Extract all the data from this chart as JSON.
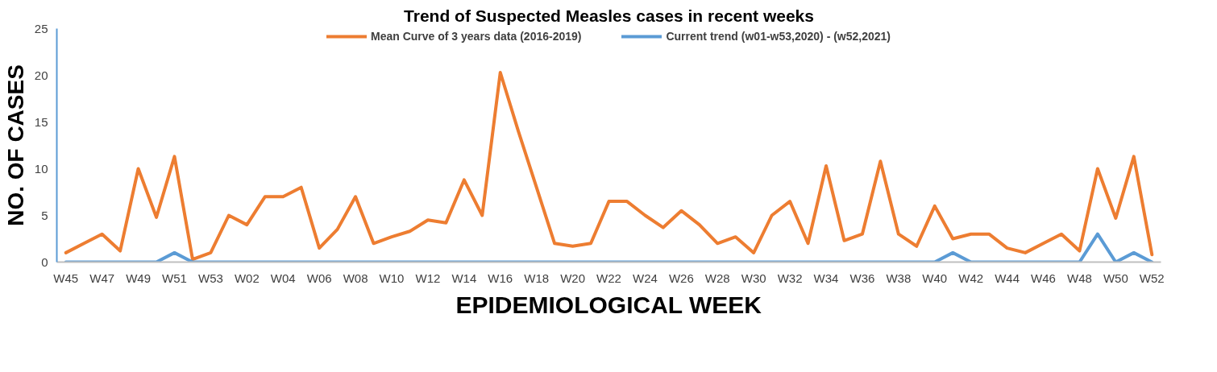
{
  "chart_data": {
    "type": "line",
    "title": "Trend of Suspected Measles cases in recent weeks",
    "xlabel": "EPIDEMIOLOGICAL WEEK",
    "ylabel": "NO. OF CASES",
    "categories": [
      "W45",
      null,
      "W47",
      null,
      "W49",
      null,
      "W51",
      null,
      "W53",
      null,
      "W02",
      null,
      "W04",
      null,
      "W06",
      null,
      "W08",
      null,
      "W10",
      null,
      "W12",
      null,
      "W14",
      null,
      "W16",
      null,
      "W18",
      null,
      "W20",
      null,
      "W22",
      null,
      "W24",
      null,
      "W26",
      null,
      "W28",
      null,
      "W30",
      null,
      "W32",
      null,
      "W34",
      null,
      "W36",
      null,
      "W38",
      null,
      "W40",
      null,
      "W42",
      null,
      "W44",
      null,
      "W46",
      null,
      "W48",
      null,
      "W50",
      null,
      "W52"
    ],
    "series": [
      {
        "name": "Mean Curve of 3 years data (2016-2019)",
        "color": "#ed7d31",
        "values": [
          1,
          2,
          3,
          1.2,
          10,
          4.8,
          11.3,
          0.3,
          1,
          5,
          4,
          7,
          7,
          8,
          1.5,
          3.5,
          7,
          2,
          2.7,
          3.3,
          4.5,
          4.2,
          8.8,
          5,
          20.3,
          14,
          8,
          2,
          1.7,
          2,
          6.5,
          6.5,
          5,
          3.7,
          5.5,
          4,
          2,
          2.7,
          1,
          5,
          6.5,
          2,
          10.3,
          2.3,
          3,
          10.8,
          3,
          1.7,
          6,
          2.5,
          3,
          3,
          1.5,
          1,
          2,
          3,
          1.2,
          10,
          4.7,
          11.3,
          0.8
        ]
      },
      {
        "name": "Current trend (w01-w53,2020) - (w52,2021)",
        "color": "#5b9bd5",
        "values": [
          0,
          0,
          0,
          0,
          0,
          0,
          1,
          0,
          0,
          0,
          0,
          0,
          0,
          0,
          0,
          0,
          0,
          0,
          0,
          0,
          0,
          0,
          0,
          0,
          0,
          0,
          0,
          0,
          0,
          0,
          0,
          0,
          0,
          0,
          0,
          0,
          0,
          0,
          0,
          0,
          0,
          0,
          0,
          0,
          0,
          0,
          0,
          0,
          0,
          1,
          0,
          0,
          0,
          0,
          0,
          0,
          0,
          3,
          0,
          1,
          0
        ]
      }
    ],
    "ylim": [
      0,
      25
    ],
    "yticks": [
      0,
      5,
      10,
      15,
      20,
      25
    ],
    "grid": false,
    "legend": "top",
    "marker": "none",
    "line_style": "solid"
  }
}
